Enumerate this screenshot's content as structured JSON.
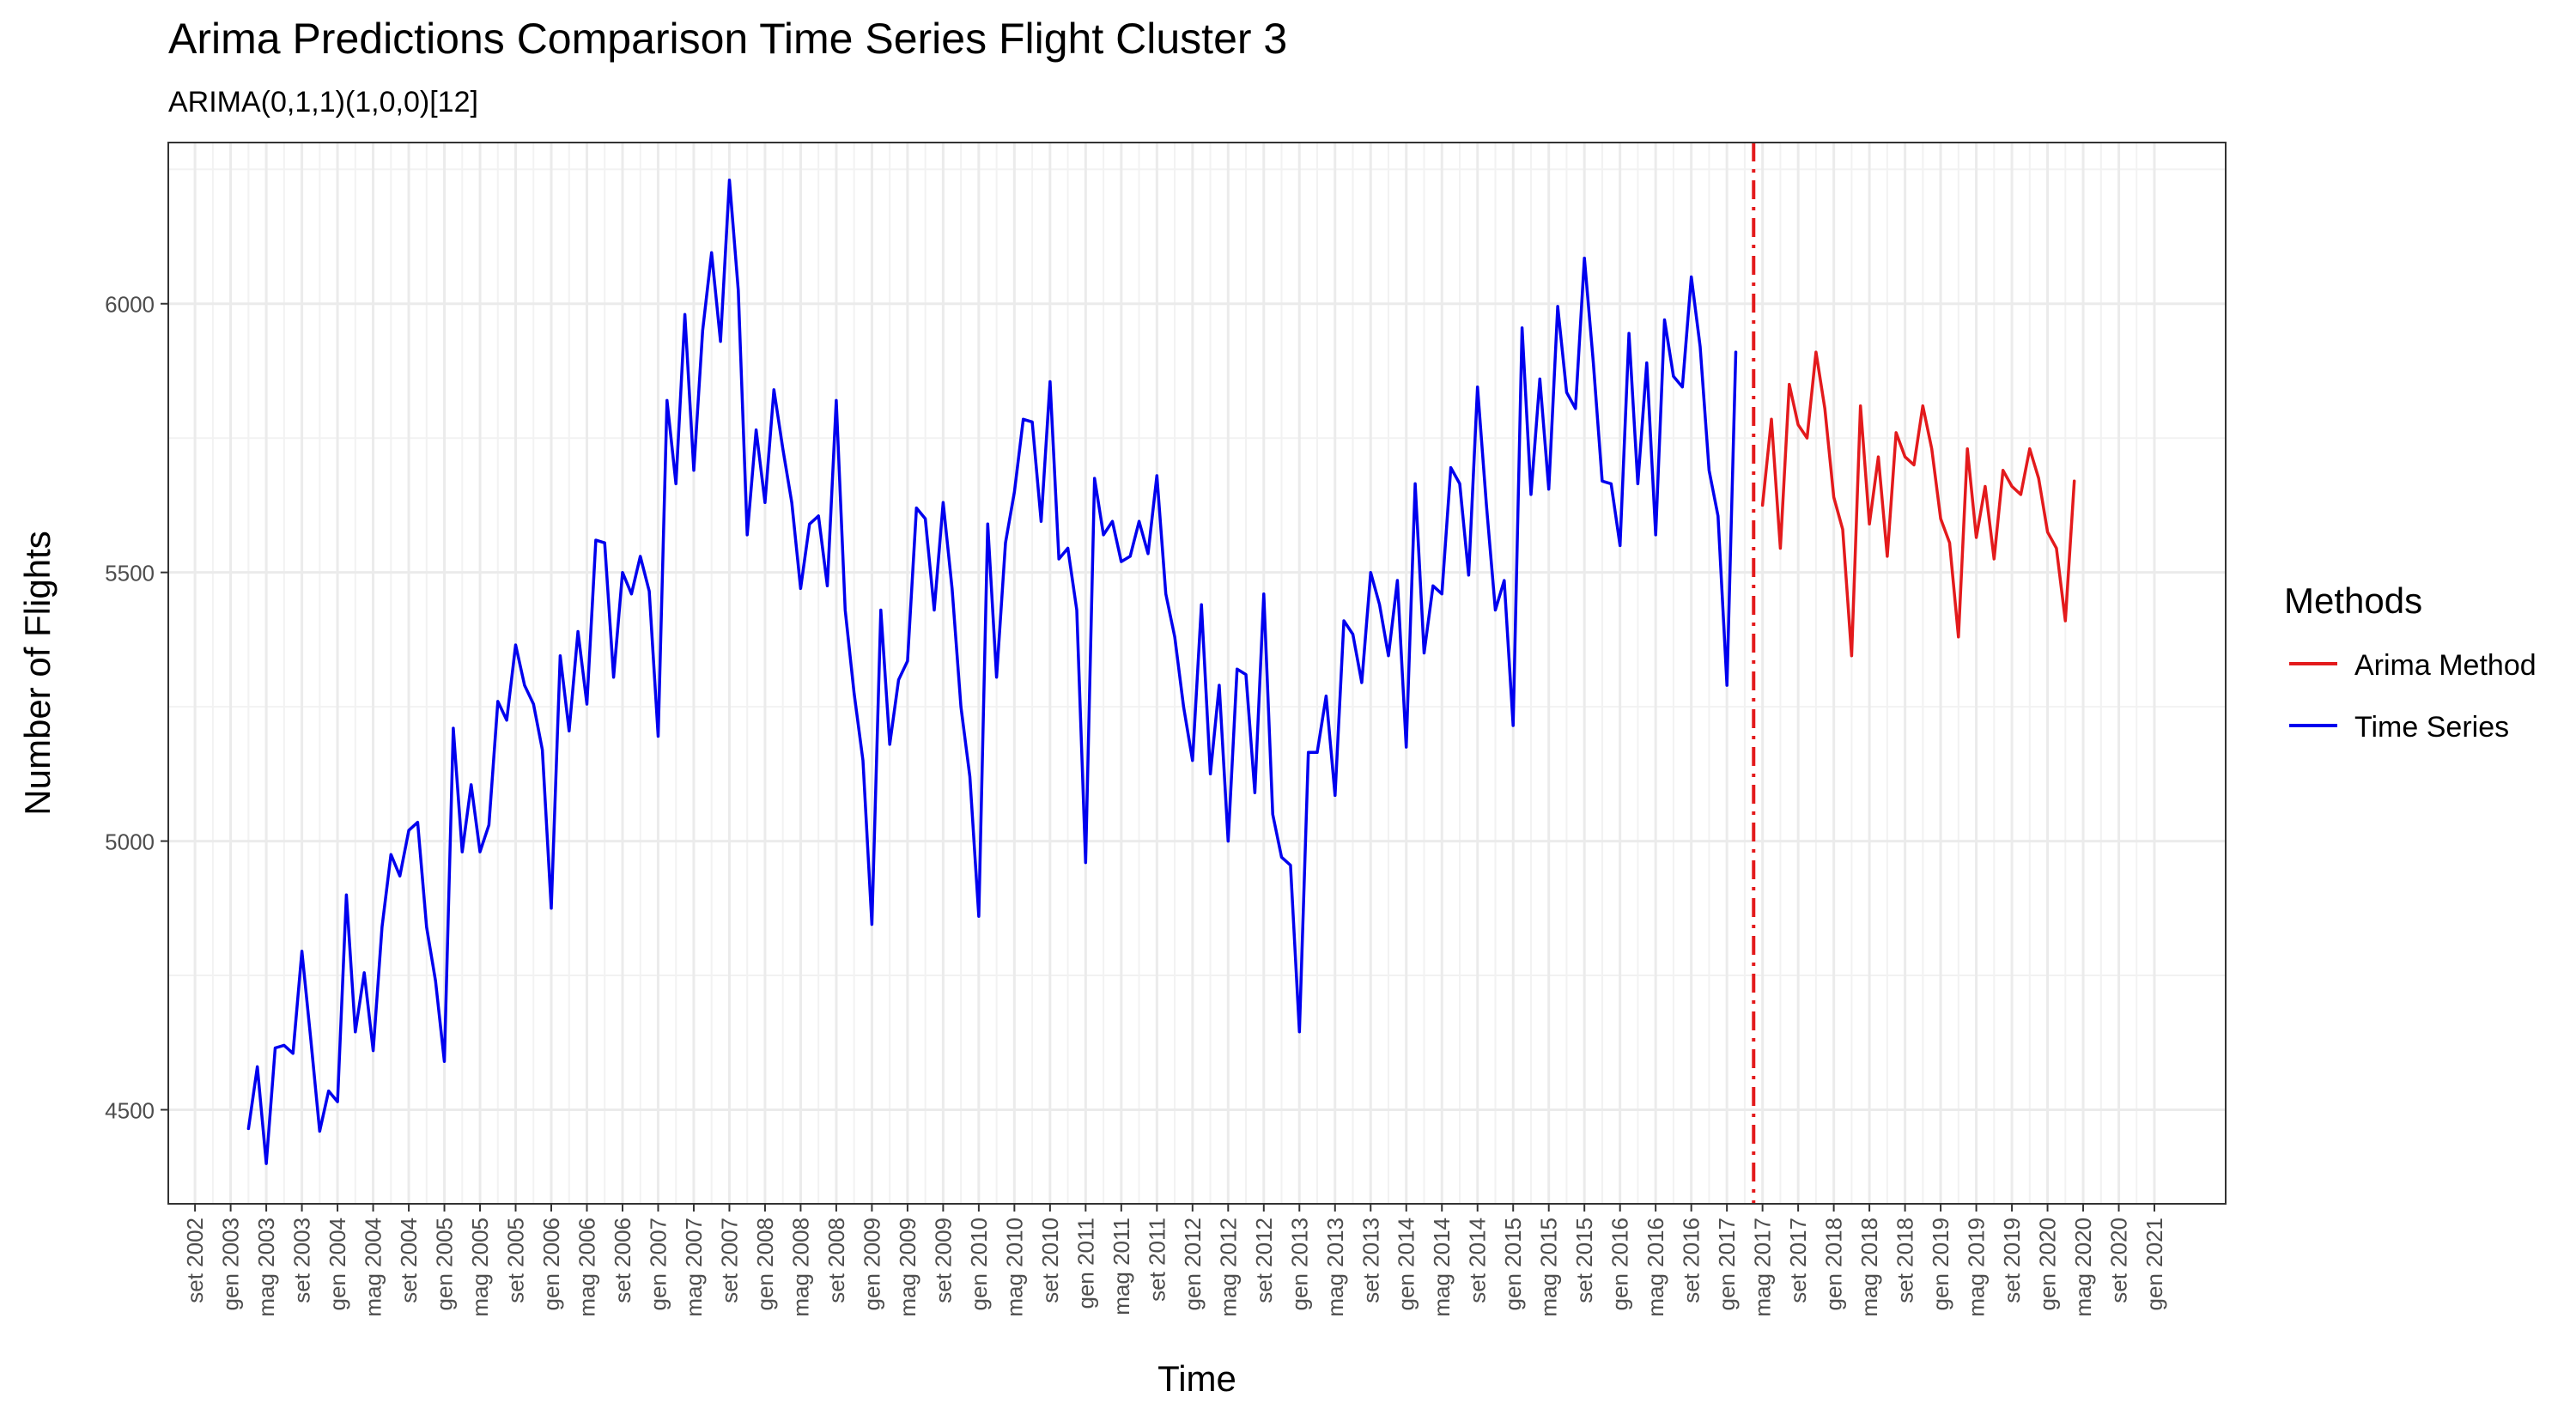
{
  "chart_data": {
    "type": "line",
    "title": "Arima Predictions Comparison Time Series Flight Cluster 3",
    "subtitle": "ARIMA(0,1,1)(1,0,0)[12]",
    "xlabel": "Time",
    "ylabel": "Number of Flights",
    "xlim": [
      "2002-06",
      "2021-09"
    ],
    "ylim": [
      4325,
      6300
    ],
    "grid": true,
    "yticks": [
      4500,
      5000,
      5500,
      6000
    ],
    "xticks": [
      {
        "date": "2002-09",
        "label": "set 2002"
      },
      {
        "date": "2003-01",
        "label": "gen 2003"
      },
      {
        "date": "2003-05",
        "label": "mag 2003"
      },
      {
        "date": "2003-09",
        "label": "set 2003"
      },
      {
        "date": "2004-01",
        "label": "gen 2004"
      },
      {
        "date": "2004-05",
        "label": "mag 2004"
      },
      {
        "date": "2004-09",
        "label": "set 2004"
      },
      {
        "date": "2005-01",
        "label": "gen 2005"
      },
      {
        "date": "2005-05",
        "label": "mag 2005"
      },
      {
        "date": "2005-09",
        "label": "set 2005"
      },
      {
        "date": "2006-01",
        "label": "gen 2006"
      },
      {
        "date": "2006-05",
        "label": "mag 2006"
      },
      {
        "date": "2006-09",
        "label": "set 2006"
      },
      {
        "date": "2007-01",
        "label": "gen 2007"
      },
      {
        "date": "2007-05",
        "label": "mag 2007"
      },
      {
        "date": "2007-09",
        "label": "set 2007"
      },
      {
        "date": "2008-01",
        "label": "gen 2008"
      },
      {
        "date": "2008-05",
        "label": "mag 2008"
      },
      {
        "date": "2008-09",
        "label": "set 2008"
      },
      {
        "date": "2009-01",
        "label": "gen 2009"
      },
      {
        "date": "2009-05",
        "label": "mag 2009"
      },
      {
        "date": "2009-09",
        "label": "set 2009"
      },
      {
        "date": "2010-01",
        "label": "gen 2010"
      },
      {
        "date": "2010-05",
        "label": "mag 2010"
      },
      {
        "date": "2010-09",
        "label": "set 2010"
      },
      {
        "date": "2011-01",
        "label": "gen 2011"
      },
      {
        "date": "2011-05",
        "label": "mag 2011"
      },
      {
        "date": "2011-09",
        "label": "set 2011"
      },
      {
        "date": "2012-01",
        "label": "gen 2012"
      },
      {
        "date": "2012-05",
        "label": "mag 2012"
      },
      {
        "date": "2012-09",
        "label": "set 2012"
      },
      {
        "date": "2013-01",
        "label": "gen 2013"
      },
      {
        "date": "2013-05",
        "label": "mag 2013"
      },
      {
        "date": "2013-09",
        "label": "set 2013"
      },
      {
        "date": "2014-01",
        "label": "gen 2014"
      },
      {
        "date": "2014-05",
        "label": "mag 2014"
      },
      {
        "date": "2014-09",
        "label": "set 2014"
      },
      {
        "date": "2015-01",
        "label": "gen 2015"
      },
      {
        "date": "2015-05",
        "label": "mag 2015"
      },
      {
        "date": "2015-09",
        "label": "set 2015"
      },
      {
        "date": "2016-01",
        "label": "gen 2016"
      },
      {
        "date": "2016-05",
        "label": "mag 2016"
      },
      {
        "date": "2016-09",
        "label": "set 2016"
      },
      {
        "date": "2017-01",
        "label": "gen 2017"
      },
      {
        "date": "2017-05",
        "label": "mag 2017"
      },
      {
        "date": "2017-09",
        "label": "set 2017"
      },
      {
        "date": "2018-01",
        "label": "gen 2018"
      },
      {
        "date": "2018-05",
        "label": "mag 2018"
      },
      {
        "date": "2018-09",
        "label": "set 2018"
      },
      {
        "date": "2019-01",
        "label": "gen 2019"
      },
      {
        "date": "2019-05",
        "label": "mag 2019"
      },
      {
        "date": "2019-09",
        "label": "set 2019"
      },
      {
        "date": "2020-01",
        "label": "gen 2020"
      },
      {
        "date": "2020-05",
        "label": "mag 2020"
      },
      {
        "date": "2020-09",
        "label": "set 2020"
      },
      {
        "date": "2021-01",
        "label": "gen 2021"
      }
    ],
    "vline": {
      "date": "2017-04",
      "color": "#e31a1c",
      "style": "dotdash"
    },
    "legend": {
      "title": "Methods",
      "position": "right"
    },
    "series": [
      {
        "name": "Time Series",
        "color": "#0000ee",
        "start": "2003-03",
        "values": [
          4465,
          4580,
          4400,
          4615,
          4620,
          4605,
          4795,
          4630,
          4460,
          4535,
          4515,
          4900,
          4645,
          4755,
          4610,
          4840,
          4975,
          4935,
          5020,
          5035,
          4840,
          4740,
          4590,
          5210,
          4980,
          5105,
          4980,
          5030,
          5260,
          5225,
          5365,
          5290,
          5255,
          5170,
          4875,
          5345,
          5205,
          5390,
          5255,
          5560,
          5555,
          5305,
          5500,
          5460,
          5530,
          5465,
          5195,
          5820,
          5665,
          5980,
          5690,
          5950,
          6095,
          5930,
          6230,
          6025,
          5570,
          5765,
          5630,
          5840,
          5730,
          5630,
          5470,
          5590,
          5605,
          5475,
          5820,
          5430,
          5275,
          5150,
          4845,
          5430,
          5180,
          5300,
          5335,
          5620,
          5600,
          5430,
          5630,
          5470,
          5250,
          5120,
          4860,
          5590,
          5305,
          5555,
          5650,
          5785,
          5780,
          5595,
          5855,
          5525,
          5545,
          5430,
          4960,
          5675,
          5570,
          5595,
          5520,
          5530,
          5595,
          5535,
          5680,
          5460,
          5380,
          5250,
          5150,
          5440,
          5125,
          5290,
          5000,
          5320,
          5310,
          5090,
          5460,
          5050,
          4970,
          4955,
          4645,
          5165,
          5165,
          5270,
          5085,
          5410,
          5385,
          5295,
          5500,
          5440,
          5345,
          5485,
          5175,
          5665,
          5350,
          5475,
          5460,
          5695,
          5665,
          5495,
          5845,
          5625,
          5430,
          5485,
          5215,
          5955,
          5645,
          5860,
          5655,
          5995,
          5835,
          5805,
          6085,
          5890,
          5670,
          5665,
          5550,
          5945,
          5665,
          5890,
          5570,
          5970,
          5865,
          5845,
          6050,
          5920,
          5690,
          5605,
          5290,
          5910
        ]
      },
      {
        "name": "Arima Method",
        "color": "#e31a1c",
        "start": "2017-05",
        "values": [
          5625,
          5785,
          5545,
          5850,
          5775,
          5750,
          5910,
          5805,
          5640,
          5580,
          5345,
          5810,
          5590,
          5715,
          5530,
          5760,
          5715,
          5700,
          5810,
          5730,
          5600,
          5555,
          5380,
          5730,
          5565,
          5660,
          5525,
          5690,
          5660,
          5645,
          5730,
          5675,
          5575,
          5545,
          5410,
          5670
        ]
      }
    ]
  }
}
